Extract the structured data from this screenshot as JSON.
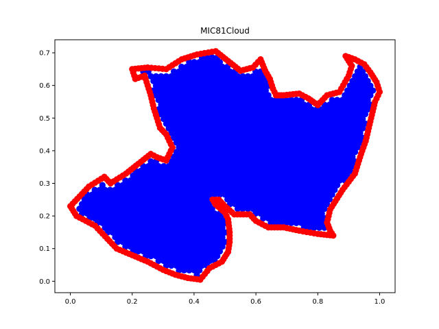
{
  "chart_data": {
    "type": "scatter",
    "title": "MIC81Cloud",
    "xlabel": "",
    "ylabel": "",
    "xlim": [
      -0.05,
      1.05
    ],
    "ylim": [
      -0.035,
      0.74
    ],
    "xticks": [
      "0.0",
      "0.2",
      "0.4",
      "0.6",
      "0.8",
      "1.0"
    ],
    "yticks": [
      "0.0",
      "0.1",
      "0.2",
      "0.3",
      "0.4",
      "0.5",
      "0.6",
      "0.7"
    ],
    "grid": false,
    "legend": "none",
    "colors": {
      "interior": "#0000ff",
      "boundary": "#ff0000"
    },
    "boundary": [
      [
        0.0,
        0.23
      ],
      [
        0.03,
        0.26
      ],
      [
        0.06,
        0.29
      ],
      [
        0.11,
        0.32
      ],
      [
        0.13,
        0.3
      ],
      [
        0.18,
        0.33
      ],
      [
        0.22,
        0.36
      ],
      [
        0.26,
        0.39
      ],
      [
        0.28,
        0.38
      ],
      [
        0.31,
        0.37
      ],
      [
        0.32,
        0.39
      ],
      [
        0.33,
        0.41
      ],
      [
        0.32,
        0.43
      ],
      [
        0.31,
        0.45
      ],
      [
        0.29,
        0.47
      ],
      [
        0.28,
        0.5
      ],
      [
        0.27,
        0.53
      ],
      [
        0.26,
        0.57
      ],
      [
        0.25,
        0.6
      ],
      [
        0.24,
        0.63
      ],
      [
        0.21,
        0.62
      ],
      [
        0.2,
        0.65
      ],
      [
        0.25,
        0.655
      ],
      [
        0.31,
        0.65
      ],
      [
        0.36,
        0.68
      ],
      [
        0.41,
        0.695
      ],
      [
        0.47,
        0.705
      ],
      [
        0.51,
        0.675
      ],
      [
        0.55,
        0.645
      ],
      [
        0.59,
        0.655
      ],
      [
        0.615,
        0.68
      ],
      [
        0.63,
        0.645
      ],
      [
        0.645,
        0.62
      ],
      [
        0.655,
        0.59
      ],
      [
        0.665,
        0.57
      ],
      [
        0.69,
        0.57
      ],
      [
        0.74,
        0.575
      ],
      [
        0.77,
        0.56
      ],
      [
        0.8,
        0.54
      ],
      [
        0.83,
        0.57
      ],
      [
        0.87,
        0.58
      ],
      [
        0.9,
        0.63
      ],
      [
        0.91,
        0.66
      ],
      [
        0.89,
        0.69
      ],
      [
        0.92,
        0.68
      ],
      [
        0.95,
        0.665
      ],
      [
        0.97,
        0.64
      ],
      [
        0.99,
        0.61
      ],
      [
        1.0,
        0.58
      ],
      [
        0.985,
        0.55
      ],
      [
        0.975,
        0.51
      ],
      [
        0.965,
        0.47
      ],
      [
        0.955,
        0.43
      ],
      [
        0.94,
        0.39
      ],
      [
        0.92,
        0.33
      ],
      [
        0.88,
        0.28
      ],
      [
        0.84,
        0.22
      ],
      [
        0.83,
        0.18
      ],
      [
        0.84,
        0.155
      ],
      [
        0.85,
        0.14
      ],
      [
        0.8,
        0.145
      ],
      [
        0.74,
        0.155
      ],
      [
        0.69,
        0.165
      ],
      [
        0.64,
        0.165
      ],
      [
        0.6,
        0.185
      ],
      [
        0.58,
        0.205
      ],
      [
        0.53,
        0.205
      ],
      [
        0.5,
        0.23
      ],
      [
        0.48,
        0.25
      ],
      [
        0.46,
        0.25
      ],
      [
        0.47,
        0.235
      ],
      [
        0.5,
        0.21
      ],
      [
        0.51,
        0.19
      ],
      [
        0.515,
        0.15
      ],
      [
        0.515,
        0.12
      ],
      [
        0.51,
        0.09
      ],
      [
        0.49,
        0.06
      ],
      [
        0.45,
        0.04
      ],
      [
        0.42,
        0.005
      ],
      [
        0.38,
        0.01
      ],
      [
        0.34,
        0.02
      ],
      [
        0.3,
        0.035
      ],
      [
        0.25,
        0.06
      ],
      [
        0.2,
        0.08
      ],
      [
        0.15,
        0.1
      ],
      [
        0.12,
        0.13
      ],
      [
        0.08,
        0.17
      ],
      [
        0.04,
        0.19
      ],
      [
        0.02,
        0.2
      ]
    ],
    "interior_spacing": [
      0.0165,
      0.0145
    ]
  }
}
